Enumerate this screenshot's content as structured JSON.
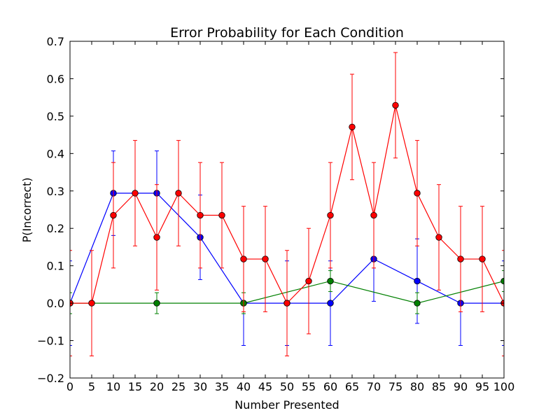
{
  "chart_data": {
    "type": "line",
    "title": "Error Probability for Each Condition",
    "xlabel": "Number Presented",
    "ylabel": "P(Incorrect)",
    "xlim": [
      0,
      100
    ],
    "ylim": [
      -0.2,
      0.7
    ],
    "xticks": [
      0,
      5,
      10,
      15,
      20,
      25,
      30,
      35,
      40,
      45,
      50,
      55,
      60,
      65,
      70,
      75,
      80,
      85,
      90,
      95,
      100
    ],
    "yticks": [
      -0.2,
      -0.1,
      0.0,
      0.1,
      0.2,
      0.3,
      0.4,
      0.5,
      0.6,
      0.7
    ],
    "ytick_labels": [
      "−0.2",
      "−0.1",
      "0.0",
      "0.1",
      "0.2",
      "0.3",
      "0.4",
      "0.5",
      "0.6",
      "0.7"
    ],
    "grid": false,
    "series": [
      {
        "color": "#0000ff",
        "x": [
          0,
          10,
          20,
          30,
          40,
          50,
          60,
          70,
          80,
          90,
          100
        ],
        "y": [
          0.0,
          0.294,
          0.294,
          0.176,
          0.0,
          0.0,
          0.0,
          0.118,
          0.059,
          0.0,
          0.0
        ],
        "err": [
          0.113,
          0.113,
          0.113,
          0.113,
          0.113,
          0.113,
          0.113,
          0.113,
          0.113,
          0.113,
          0.113
        ]
      },
      {
        "color": "#008000",
        "x": [
          0,
          20,
          40,
          60,
          80,
          100
        ],
        "y": [
          0.0,
          0.0,
          0.0,
          0.059,
          0.0,
          0.059
        ],
        "err": [
          0.028,
          0.028,
          0.028,
          0.028,
          0.028,
          0.028
        ]
      },
      {
        "color": "#ff0000",
        "x": [
          0,
          5,
          10,
          15,
          20,
          25,
          30,
          35,
          40,
          45,
          50,
          55,
          60,
          65,
          70,
          75,
          80,
          85,
          90,
          95,
          100
        ],
        "y": [
          0.0,
          0.0,
          0.235,
          0.294,
          0.176,
          0.294,
          0.235,
          0.235,
          0.118,
          0.118,
          0.0,
          0.059,
          0.235,
          0.471,
          0.235,
          0.529,
          0.294,
          0.176,
          0.118,
          0.118,
          0.0
        ],
        "err": [
          0.141,
          0.141,
          0.141,
          0.141,
          0.141,
          0.141,
          0.141,
          0.141,
          0.141,
          0.141,
          0.141,
          0.141,
          0.141,
          0.141,
          0.141,
          0.141,
          0.141,
          0.141,
          0.141,
          0.141,
          0.141
        ]
      }
    ]
  }
}
